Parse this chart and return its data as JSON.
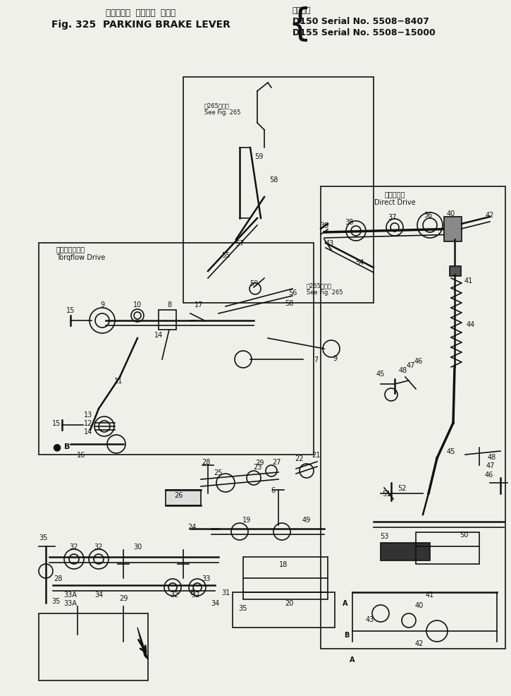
{
  "bg_color": "#f0f0eb",
  "line_color": "#111111",
  "fig_width": 7.25,
  "fig_height": 9.87,
  "dpi": 100,
  "title": {
    "jp_line": "パーキング  ブレーキ  レバー",
    "en_line": "Fig. 325  PARKING BRAKE LEVER",
    "right_jp": "適用号機",
    "right1": "D150 Serial No. 5508−8407",
    "right2": "D155 Serial No. 5508−15000"
  },
  "labels": {
    "torqflow_jp": "トルクフロー式",
    "torqflow_en": "Torqflow Drive",
    "direct_jp": "クラッチ式",
    "direct_en": "Direct Drive",
    "see_fig_jp": "第265図参照",
    "see_fig_en": "See Fig. 265",
    "see_fig2_jp": "第265図参照",
    "see_fig2_en": "See Fig. 265"
  }
}
